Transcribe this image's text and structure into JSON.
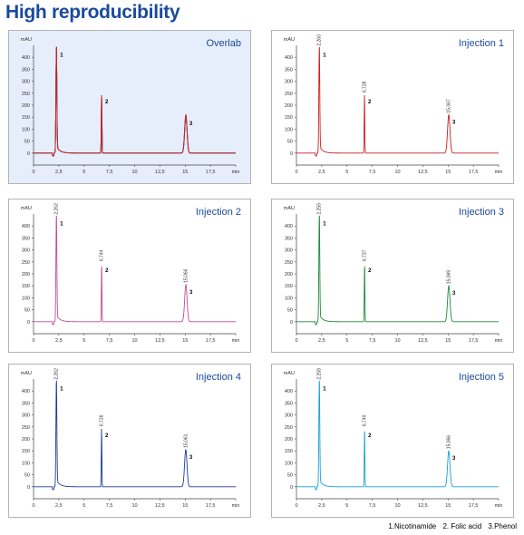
{
  "page": {
    "title": "High reproducibility"
  },
  "legend": {
    "items": [
      "1.Nicotinamide",
      "2. Folic acid",
      "3.Phenol"
    ]
  },
  "colors": {
    "title": "#1a4a9c",
    "overlay_background": "#e6eefb",
    "panel_border": "#b3b3b3"
  },
  "chart_data": [
    {
      "id": "overlay",
      "type": "line",
      "title": "Overlab",
      "ylabel": "mAU",
      "xlabel": "min",
      "ylim": [
        -50,
        450
      ],
      "xlim": [
        0,
        20
      ],
      "yticks": [
        0,
        50,
        100,
        150,
        200,
        250,
        300,
        350,
        400
      ],
      "ytick_labels": [
        "0",
        "50",
        "100",
        "150",
        "200",
        "250",
        "300",
        "350",
        "400"
      ],
      "xticks": [
        0,
        2.5,
        5,
        7.5,
        10,
        12.5,
        15,
        17.5,
        20
      ],
      "xtick_labels": [
        "0",
        "2,5",
        "5",
        "7,5",
        "10",
        "12,5",
        "15",
        "17,5",
        "min"
      ],
      "background": "overlay",
      "series": [
        {
          "color": "#1f3d8a",
          "peaks": [
            {
              "rt": 2.26,
              "height": 440,
              "label": "1"
            },
            {
              "rt": 6.73,
              "height": 245,
              "label": "2"
            },
            {
              "rt": 15.06,
              "height": 155,
              "label": "3"
            }
          ]
        },
        {
          "color": "#18a0d6",
          "peaks": [
            {
              "rt": 2.26,
              "height": 440,
              "label": "1"
            },
            {
              "rt": 6.74,
              "height": 245,
              "label": "2"
            },
            {
              "rt": 15.07,
              "height": 150,
              "label": "3"
            }
          ]
        },
        {
          "color": "#1e8a3c",
          "peaks": [
            {
              "rt": 2.26,
              "height": 440,
              "label": "1"
            },
            {
              "rt": 6.74,
              "height": 245,
              "label": "2"
            },
            {
              "rt": 15.07,
              "height": 150,
              "label": "3"
            }
          ]
        },
        {
          "color": "#c44a9a",
          "peaks": [
            {
              "rt": 2.26,
              "height": 440,
              "label": "1"
            },
            {
              "rt": 6.74,
              "height": 245,
              "label": "2"
            },
            {
              "rt": 15.07,
              "height": 155,
              "label": "3"
            }
          ]
        },
        {
          "color": "#cc1f1f",
          "peaks": [
            {
              "rt": 2.26,
              "height": 440,
              "label": "1"
            },
            {
              "rt": 6.73,
              "height": 245,
              "label": "2"
            },
            {
              "rt": 15.07,
              "height": 160,
              "label": "3"
            }
          ]
        }
      ]
    },
    {
      "id": "injection1",
      "type": "line",
      "title": "Injection 1",
      "ylabel": "mAU",
      "xlabel": "min",
      "ylim": [
        -50,
        450
      ],
      "xlim": [
        0,
        20
      ],
      "yticks": [
        0,
        50,
        100,
        150,
        200,
        250,
        300,
        350,
        400
      ],
      "ytick_labels": [
        "0",
        "50",
        "100",
        "150",
        "200",
        "250",
        "300",
        "350",
        "400"
      ],
      "xticks": [
        0,
        2.5,
        5,
        7.5,
        10,
        12.5,
        15,
        17.5,
        20
      ],
      "xtick_labels": [
        "0",
        "2,5",
        "5",
        "7,5",
        "10",
        "12,5",
        "15",
        "17,5",
        "min"
      ],
      "background": "plain",
      "series": [
        {
          "color": "#cc1f1f",
          "peaks": [
            {
              "rt": 2.26,
              "height": 440,
              "label": "1",
              "rt_label": "2,260"
            },
            {
              "rt": 6.73,
              "height": 245,
              "label": "2",
              "rt_label": "6,728"
            },
            {
              "rt": 15.07,
              "height": 160,
              "label": "3",
              "rt_label": "15,067"
            }
          ]
        }
      ]
    },
    {
      "id": "injection2",
      "type": "line",
      "title": "Injection 2",
      "ylabel": "mAU",
      "xlabel": "min",
      "ylim": [
        -50,
        450
      ],
      "xlim": [
        0,
        20
      ],
      "yticks": [
        0,
        50,
        100,
        150,
        200,
        250,
        300,
        350,
        400
      ],
      "ytick_labels": [
        "0",
        "50",
        "100",
        "150",
        "200",
        "250",
        "300",
        "350",
        "400"
      ],
      "xticks": [
        0,
        2.5,
        5,
        7.5,
        10,
        12.5,
        15,
        17.5,
        20
      ],
      "xtick_labels": [
        "0",
        "2,5",
        "5",
        "7,5",
        "10",
        "12,5",
        "15",
        "17,5",
        "min"
      ],
      "background": "plain",
      "series": [
        {
          "color": "#c44a9a",
          "peaks": [
            {
              "rt": 2.26,
              "height": 440,
              "label": "1",
              "rt_label": "2,262"
            },
            {
              "rt": 6.74,
              "height": 245,
              "label": "2",
              "rt_label": "6,744"
            },
            {
              "rt": 15.07,
              "height": 155,
              "label": "3",
              "rt_label": "15,066"
            }
          ]
        }
      ]
    },
    {
      "id": "injection3",
      "type": "line",
      "title": "Injection 3",
      "ylabel": "mAU",
      "xlabel": "min",
      "ylim": [
        -50,
        450
      ],
      "xlim": [
        0,
        20
      ],
      "yticks": [
        0,
        50,
        100,
        150,
        200,
        250,
        300,
        350,
        400
      ],
      "ytick_labels": [
        "0",
        "50",
        "100",
        "150",
        "200",
        "250",
        "300",
        "350",
        "400"
      ],
      "xticks": [
        0,
        2.5,
        5,
        7.5,
        10,
        12.5,
        15,
        17.5,
        20
      ],
      "xtick_labels": [
        "0",
        "2,5",
        "5",
        "7,5",
        "10",
        "12,5",
        "15",
        "17,5",
        "min"
      ],
      "background": "plain",
      "series": [
        {
          "color": "#1e8a3c",
          "peaks": [
            {
              "rt": 2.26,
              "height": 440,
              "label": "1",
              "rt_label": "2,259"
            },
            {
              "rt": 6.74,
              "height": 245,
              "label": "2",
              "rt_label": "6,737"
            },
            {
              "rt": 15.07,
              "height": 150,
              "label": "3",
              "rt_label": "15,069"
            }
          ]
        }
      ]
    },
    {
      "id": "injection4",
      "type": "line",
      "title": "Injection 4",
      "ylabel": "mAU",
      "xlabel": "min",
      "ylim": [
        -50,
        450
      ],
      "xlim": [
        0,
        20
      ],
      "yticks": [
        0,
        50,
        100,
        150,
        200,
        250,
        300,
        350,
        400
      ],
      "ytick_labels": [
        "0",
        "50",
        "100",
        "150",
        "200",
        "250",
        "300",
        "350",
        "400"
      ],
      "xticks": [
        0,
        2.5,
        5,
        7.5,
        10,
        12.5,
        15,
        17.5,
        20
      ],
      "xtick_labels": [
        "0",
        "2,5",
        "5",
        "7,5",
        "10",
        "12,5",
        "15",
        "17,5",
        "min"
      ],
      "background": "plain",
      "series": [
        {
          "color": "#1f3d8a",
          "peaks": [
            {
              "rt": 2.26,
              "height": 440,
              "label": "1",
              "rt_label": "2,262"
            },
            {
              "rt": 6.73,
              "height": 245,
              "label": "2",
              "rt_label": "6,726"
            },
            {
              "rt": 15.06,
              "height": 155,
              "label": "3",
              "rt_label": "15,061"
            }
          ]
        }
      ]
    },
    {
      "id": "injection5",
      "type": "line",
      "title": "Injection 5",
      "ylabel": "mAU",
      "xlabel": "min",
      "ylim": [
        -50,
        450
      ],
      "xlim": [
        0,
        20
      ],
      "yticks": [
        0,
        50,
        100,
        150,
        200,
        250,
        300,
        350,
        400
      ],
      "ytick_labels": [
        "0",
        "50",
        "100",
        "150",
        "200",
        "250",
        "300",
        "350",
        "400"
      ],
      "xticks": [
        0,
        2.5,
        5,
        7.5,
        10,
        12.5,
        15,
        17.5,
        20
      ],
      "xtick_labels": [
        "0",
        "2,5",
        "5",
        "7,5",
        "10",
        "12,5",
        "15",
        "17,5",
        "min"
      ],
      "background": "plain",
      "series": [
        {
          "color": "#18a0d6",
          "peaks": [
            {
              "rt": 2.26,
              "height": 440,
              "label": "1",
              "rt_label": "2,259"
            },
            {
              "rt": 6.74,
              "height": 245,
              "label": "2",
              "rt_label": "6,740"
            },
            {
              "rt": 15.07,
              "height": 150,
              "label": "3",
              "rt_label": "15,066"
            }
          ]
        }
      ]
    }
  ]
}
